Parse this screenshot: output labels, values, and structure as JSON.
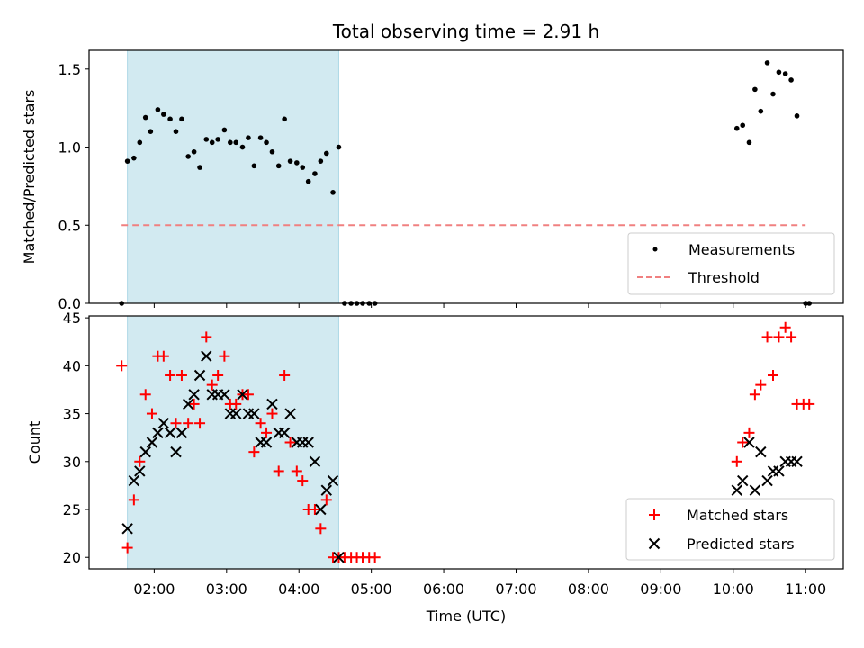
{
  "chart_data": {
    "title": "Total observing time = 2.91 h",
    "colors": {
      "measurement": "#000000",
      "threshold": "#f08080",
      "matched": "#ff0000",
      "predicted": "#000000",
      "shade": "#add8e6"
    },
    "x_axis": {
      "label": "Time (UTC)",
      "type": "time",
      "range_hours": [
        1.1,
        11.52
      ],
      "ticks": [
        {
          "h": 2,
          "label": "02:00"
        },
        {
          "h": 3,
          "label": "03:00"
        },
        {
          "h": 4,
          "label": "04:00"
        },
        {
          "h": 5,
          "label": "05:00"
        },
        {
          "h": 6,
          "label": "06:00"
        },
        {
          "h": 7,
          "label": "07:00"
        },
        {
          "h": 8,
          "label": "08:00"
        },
        {
          "h": 9,
          "label": "09:00"
        },
        {
          "h": 10,
          "label": "10:00"
        },
        {
          "h": 11,
          "label": "11:00"
        }
      ]
    },
    "shaded_interval_hours": [
      1.63,
      4.55
    ],
    "panels": [
      {
        "type": "scatter",
        "ylabel": "Matched/Predicted stars",
        "ylim": [
          0,
          1.62
        ],
        "yticks": [
          {
            "v": 0,
            "label": "0.0"
          },
          {
            "v": 0.5,
            "label": "0.5"
          },
          {
            "v": 1.0,
            "label": "1.0"
          },
          {
            "v": 1.5,
            "label": "1.5"
          }
        ],
        "threshold": {
          "value": 0.5,
          "x_range": [
            1.55,
            11.0
          ]
        },
        "legend": {
          "position": "lower-right",
          "entries": [
            "Measurements",
            "Threshold"
          ]
        },
        "measurements": [
          [
            1.55,
            0.0
          ],
          [
            1.63,
            0.91
          ],
          [
            1.72,
            0.93
          ],
          [
            1.8,
            1.03
          ],
          [
            1.88,
            1.19
          ],
          [
            1.95,
            1.1
          ],
          [
            2.05,
            1.24
          ],
          [
            2.13,
            1.21
          ],
          [
            2.22,
            1.18
          ],
          [
            2.3,
            1.1
          ],
          [
            2.38,
            1.18
          ],
          [
            2.47,
            0.94
          ],
          [
            2.55,
            0.97
          ],
          [
            2.63,
            0.87
          ],
          [
            2.72,
            1.05
          ],
          [
            2.8,
            1.03
          ],
          [
            2.88,
            1.05
          ],
          [
            2.97,
            1.11
          ],
          [
            3.05,
            1.03
          ],
          [
            3.13,
            1.03
          ],
          [
            3.22,
            1.0
          ],
          [
            3.3,
            1.06
          ],
          [
            3.38,
            0.88
          ],
          [
            3.47,
            1.06
          ],
          [
            3.55,
            1.03
          ],
          [
            3.63,
            0.97
          ],
          [
            3.72,
            0.88
          ],
          [
            3.8,
            1.18
          ],
          [
            3.88,
            0.91
          ],
          [
            3.97,
            0.9
          ],
          [
            4.05,
            0.87
          ],
          [
            4.13,
            0.78
          ],
          [
            4.22,
            0.83
          ],
          [
            4.3,
            0.91
          ],
          [
            4.38,
            0.96
          ],
          [
            4.47,
            0.71
          ],
          [
            4.55,
            1.0
          ],
          [
            4.63,
            0.0
          ],
          [
            4.72,
            0.0
          ],
          [
            4.8,
            0.0
          ],
          [
            4.88,
            0.0
          ],
          [
            4.97,
            0.0
          ],
          [
            5.05,
            0.0
          ],
          [
            10.05,
            1.12
          ],
          [
            10.13,
            1.14
          ],
          [
            10.22,
            1.03
          ],
          [
            10.3,
            1.37
          ],
          [
            10.38,
            1.23
          ],
          [
            10.47,
            1.54
          ],
          [
            10.55,
            1.34
          ],
          [
            10.63,
            1.48
          ],
          [
            10.72,
            1.47
          ],
          [
            10.8,
            1.43
          ],
          [
            10.88,
            1.2
          ],
          [
            11.0,
            0.0
          ],
          [
            11.05,
            0.0
          ]
        ]
      },
      {
        "type": "scatter",
        "ylabel": "Count",
        "ylim": [
          18.8,
          45.2
        ],
        "yticks": [
          {
            "v": 20,
            "label": "20"
          },
          {
            "v": 25,
            "label": "25"
          },
          {
            "v": 30,
            "label": "30"
          },
          {
            "v": 35,
            "label": "35"
          },
          {
            "v": 40,
            "label": "40"
          },
          {
            "v": 45,
            "label": "45"
          }
        ],
        "legend": {
          "position": "lower-right",
          "entries": [
            "Matched stars",
            "Predicted stars"
          ]
        },
        "matched": [
          [
            1.55,
            40
          ],
          [
            1.63,
            21
          ],
          [
            1.72,
            26
          ],
          [
            1.8,
            30
          ],
          [
            1.88,
            37
          ],
          [
            1.97,
            35
          ],
          [
            2.05,
            41
          ],
          [
            2.13,
            41
          ],
          [
            2.22,
            39
          ],
          [
            2.3,
            34
          ],
          [
            2.38,
            39
          ],
          [
            2.47,
            34
          ],
          [
            2.55,
            36
          ],
          [
            2.63,
            34
          ],
          [
            2.72,
            43
          ],
          [
            2.8,
            38
          ],
          [
            2.88,
            39
          ],
          [
            2.97,
            41
          ],
          [
            3.05,
            36
          ],
          [
            3.13,
            36
          ],
          [
            3.22,
            37
          ],
          [
            3.3,
            37
          ],
          [
            3.38,
            31
          ],
          [
            3.47,
            34
          ],
          [
            3.55,
            33
          ],
          [
            3.63,
            35
          ],
          [
            3.72,
            29
          ],
          [
            3.8,
            39
          ],
          [
            3.88,
            32
          ],
          [
            3.97,
            29
          ],
          [
            4.05,
            28
          ],
          [
            4.13,
            25
          ],
          [
            4.22,
            25
          ],
          [
            4.3,
            23
          ],
          [
            4.38,
            26
          ],
          [
            4.47,
            20
          ],
          [
            4.55,
            20
          ],
          [
            4.63,
            20
          ],
          [
            4.72,
            20
          ],
          [
            4.8,
            20
          ],
          [
            4.88,
            20
          ],
          [
            4.97,
            20
          ],
          [
            5.05,
            20
          ],
          [
            10.05,
            30
          ],
          [
            10.13,
            32
          ],
          [
            10.22,
            33
          ],
          [
            10.3,
            37
          ],
          [
            10.38,
            38
          ],
          [
            10.47,
            43
          ],
          [
            10.55,
            39
          ],
          [
            10.63,
            43
          ],
          [
            10.72,
            44
          ],
          [
            10.8,
            43
          ],
          [
            10.88,
            36
          ],
          [
            10.97,
            36
          ],
          [
            11.05,
            36
          ]
        ],
        "predicted": [
          [
            1.63,
            23
          ],
          [
            1.72,
            28
          ],
          [
            1.8,
            29
          ],
          [
            1.88,
            31
          ],
          [
            1.97,
            32
          ],
          [
            2.05,
            33
          ],
          [
            2.13,
            34
          ],
          [
            2.22,
            33
          ],
          [
            2.3,
            31
          ],
          [
            2.38,
            33
          ],
          [
            2.47,
            36
          ],
          [
            2.55,
            37
          ],
          [
            2.63,
            39
          ],
          [
            2.72,
            41
          ],
          [
            2.8,
            37
          ],
          [
            2.88,
            37
          ],
          [
            2.97,
            37
          ],
          [
            3.05,
            35
          ],
          [
            3.13,
            35
          ],
          [
            3.22,
            37
          ],
          [
            3.3,
            35
          ],
          [
            3.38,
            35
          ],
          [
            3.47,
            32
          ],
          [
            3.55,
            32
          ],
          [
            3.63,
            36
          ],
          [
            3.72,
            33
          ],
          [
            3.8,
            33
          ],
          [
            3.88,
            35
          ],
          [
            3.97,
            32
          ],
          [
            4.05,
            32
          ],
          [
            4.13,
            32
          ],
          [
            4.22,
            30
          ],
          [
            4.3,
            25
          ],
          [
            4.38,
            27
          ],
          [
            4.47,
            28
          ],
          [
            4.55,
            20
          ],
          [
            10.05,
            27
          ],
          [
            10.13,
            28
          ],
          [
            10.22,
            32
          ],
          [
            10.3,
            27
          ],
          [
            10.38,
            31
          ],
          [
            10.47,
            28
          ],
          [
            10.55,
            29
          ],
          [
            10.63,
            29
          ],
          [
            10.72,
            30
          ],
          [
            10.8,
            30
          ],
          [
            10.88,
            30
          ]
        ]
      }
    ]
  }
}
